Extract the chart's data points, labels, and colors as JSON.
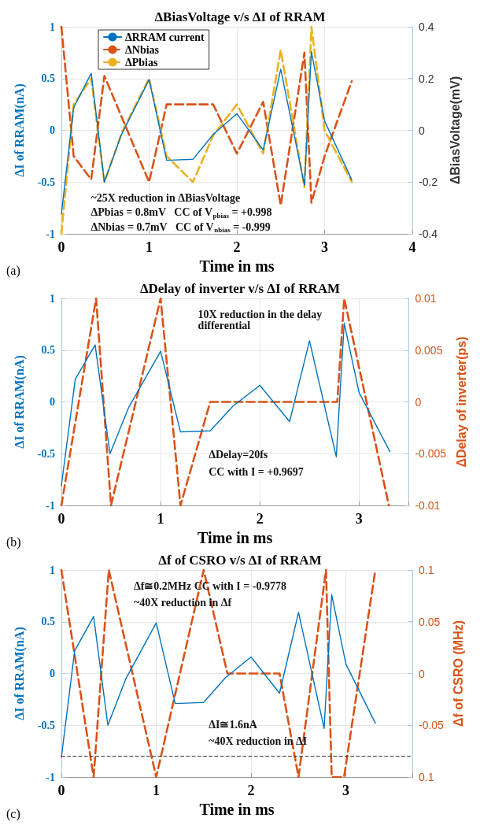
{
  "chart_data": [
    {
      "type": "line",
      "title": "ΔBiasVoltage v/s ΔI of RRAM",
      "xlabel": "Time in ms",
      "ylabel": "ΔI of RRAM(nA)",
      "y2label": "ΔBiasVoltage(mV)",
      "xlim": [
        0,
        4
      ],
      "xticks": [
        0,
        1,
        2,
        3,
        4
      ],
      "ylim": [
        -1,
        1
      ],
      "yticks": [
        -1,
        -0.5,
        0,
        0.5,
        1
      ],
      "y2lim": [
        -0.4,
        0.4
      ],
      "y2ticks": [
        -0.4,
        -0.2,
        0,
        0.2,
        0.4
      ],
      "grid": true,
      "legend": "top left",
      "marker": "none",
      "annotations": [
        "(a)",
        "~25X reduction in ΔBiasVoltage",
        "ΔPbias = 0.8mV   CC of V$_{pbias}$ = +0.998",
        "ΔNbias = 0.7mV   CC of V$_{nbias}$ = -0.999"
      ],
      "series": [
        {
          "name": "ΔRRAM current",
          "color": "#0072bd",
          "line_style": "solid",
          "x": [
            0,
            0.14,
            0.34,
            0.49,
            0.68,
            1.0,
            1.2,
            1.5,
            1.73,
            2.0,
            2.3,
            2.5,
            2.77,
            2.85,
            3.0,
            3.31
          ],
          "values": [
            -0.81,
            0.22,
            0.55,
            -0.5,
            -0.05,
            0.49,
            -0.29,
            -0.28,
            -0.04,
            0.16,
            -0.19,
            0.59,
            -0.53,
            0.76,
            0.09,
            -0.48
          ]
        },
        {
          "name": "ΔNbias",
          "color": "#d95319",
          "line_style": "dashed",
          "axis": "y2",
          "x": [
            0,
            0.14,
            0.34,
            0.49,
            1.0,
            1.2,
            1.73,
            2.0,
            2.3,
            2.5,
            2.77,
            2.85,
            3.0,
            3.31
          ],
          "values": [
            0.4,
            -0.1,
            -0.19,
            0.21,
            -0.2,
            0.1,
            0.1,
            -0.09,
            0.11,
            -0.29,
            0.3,
            -0.28,
            -0.1,
            0.19
          ]
        },
        {
          "name": "ΔPbias",
          "color": "#edb120",
          "line_style": "dashed",
          "axis": "y2",
          "x": [
            0,
            0.14,
            0.34,
            0.49,
            0.7,
            1.0,
            1.2,
            1.5,
            1.73,
            2.0,
            2.3,
            2.5,
            2.77,
            2.85,
            3.0,
            3.31
          ],
          "values": [
            -0.4,
            0.1,
            0.2,
            -0.2,
            0,
            0.2,
            -0.1,
            -0.2,
            -0.02,
            0.1,
            -0.09,
            0.31,
            -0.22,
            0.4,
            0,
            -0.2
          ]
        }
      ]
    },
    {
      "type": "line",
      "title": "ΔDelay of inverter v/s ΔI of RRAM",
      "xlabel": "Time in ms",
      "ylabel": "ΔI of RRAM(nA)",
      "y2label": "ΔDelay of inverter(ps)",
      "xlim": [
        0,
        3.5
      ],
      "xticks": [
        0,
        1,
        2,
        3
      ],
      "ylim": [
        -1,
        1
      ],
      "yticks": [
        -1,
        -0.5,
        0,
        0.5,
        1
      ],
      "y2lim": [
        -0.01,
        0.01
      ],
      "y2ticks": [
        -0.01,
        -0.005,
        0,
        0.005,
        0.01
      ],
      "grid": true,
      "marker": "none",
      "annotations": [
        "(b)",
        "10X reduction in the delay differential",
        "ΔDelay=20fs",
        "CC with I = +0.9697"
      ],
      "series": [
        {
          "color": "#0072bd",
          "line_style": "solid",
          "x": [
            0,
            0.14,
            0.34,
            0.49,
            0.68,
            1.0,
            1.2,
            1.5,
            1.73,
            2.0,
            2.3,
            2.5,
            2.77,
            2.85,
            3.0,
            3.31
          ],
          "values": [
            -0.81,
            0.22,
            0.55,
            -0.5,
            -0.05,
            0.49,
            -0.29,
            -0.28,
            -0.04,
            0.16,
            -0.19,
            0.59,
            -0.53,
            0.76,
            0.09,
            -0.48
          ]
        },
        {
          "color": "#d95319",
          "line_style": "dashed",
          "axis": "y2",
          "x": [
            0,
            0.35,
            0.5,
            1.0,
            1.2,
            1.5,
            2.78,
            2.85,
            3.3
          ],
          "values": [
            -0.01,
            0.01,
            -0.01,
            0.01,
            -0.01,
            0,
            0,
            0.01,
            -0.01
          ]
        }
      ]
    },
    {
      "type": "line",
      "title": "Δf of CSRO v/s ΔI of RRAM",
      "xlabel": "Time in ms",
      "ylabel": "ΔI of RRAM(nA)",
      "y2label": "Δf of CSRO (MHz)",
      "xlim": [
        0,
        3.7
      ],
      "xticks": [
        0,
        1,
        2,
        3
      ],
      "ylim": [
        -1,
        1
      ],
      "yticks": [
        -1,
        -0.5,
        0,
        0.5,
        1
      ],
      "y2lim": [
        -0.1,
        0.1
      ],
      "y2ticks": [
        {
          "value": -0.1,
          "label": "0.1"
        },
        -0.05,
        0,
        0.05,
        0.1
      ],
      "grid": true,
      "marker": "none",
      "annotations": [
        "(c)",
        "Δf≅0.2MHz CC with I = -0.9778",
        "~40X reduction in Δf",
        "ΔI≅1.6nA",
        "~40X reduction in ΔI"
      ],
      "ref_lines": [
        {
          "axis": "y",
          "value": -0.8,
          "color": "#333333",
          "line_style": "dashed"
        }
      ],
      "series": [
        {
          "color": "#0072bd",
          "line_style": "solid",
          "x": [
            0,
            0.14,
            0.34,
            0.49,
            0.68,
            1.0,
            1.2,
            1.5,
            1.73,
            2.0,
            2.3,
            2.5,
            2.77,
            2.85,
            3.0,
            3.31
          ],
          "values": [
            -0.81,
            0.22,
            0.55,
            -0.5,
            -0.05,
            0.49,
            -0.29,
            -0.28,
            -0.04,
            0.16,
            -0.19,
            0.59,
            -0.53,
            0.76,
            0.09,
            -0.48
          ]
        },
        {
          "color": "#d95319",
          "line_style": "dashed",
          "axis": "y2",
          "x": [
            0,
            0.34,
            0.5,
            1.0,
            1.5,
            1.75,
            2.3,
            2.5,
            2.79,
            2.85,
            2.98,
            3.31
          ],
          "values": [
            0.1,
            -0.1,
            0.1,
            -0.1,
            0.1,
            0,
            0,
            -0.1,
            0.1,
            -0.1,
            -0.1,
            0.1
          ]
        }
      ]
    }
  ]
}
